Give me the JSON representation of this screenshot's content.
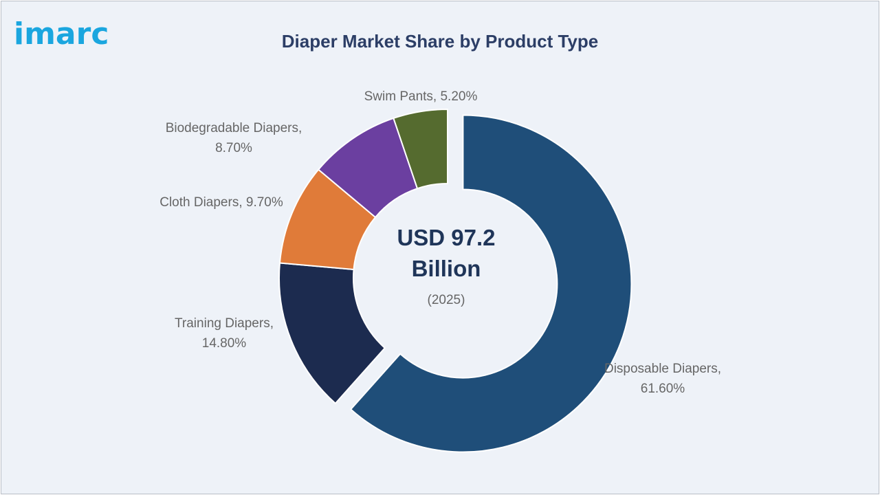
{
  "brand": {
    "logo_text": "imarc",
    "logo_color": "#1aa6df"
  },
  "title": "Diaper Market Share by Product Type",
  "center": {
    "line1": "USD 97.2",
    "line2": "Billion",
    "year": "(2025)"
  },
  "chart_data": {
    "type": "pie",
    "subtype": "donut",
    "title": "Diaper Market Share by Product Type",
    "unit": "%",
    "exploded_slice": "Disposable Diapers",
    "slices": [
      {
        "name": "Disposable Diapers",
        "value": 61.6,
        "label_lines": [
          "Disposable Diapers,",
          "61.60%"
        ],
        "color": "#1f4e79"
      },
      {
        "name": "Training Diapers",
        "value": 14.8,
        "label_lines": [
          "Training Diapers,",
          "14.80%"
        ],
        "color": "#1c2b4f"
      },
      {
        "name": "Cloth Diapers",
        "value": 9.7,
        "label_lines": [
          "Cloth Diapers, 9.70%"
        ],
        "color": "#e07b39"
      },
      {
        "name": "Biodegradable Diapers",
        "value": 8.7,
        "label_lines": [
          "Biodegradable Diapers,",
          "8.70%"
        ],
        "color": "#6b3fa0"
      },
      {
        "name": "Swim Pants",
        "value": 5.2,
        "label_lines": [
          "Swim Pants, 5.20%"
        ],
        "color": "#556b2f"
      }
    ]
  }
}
